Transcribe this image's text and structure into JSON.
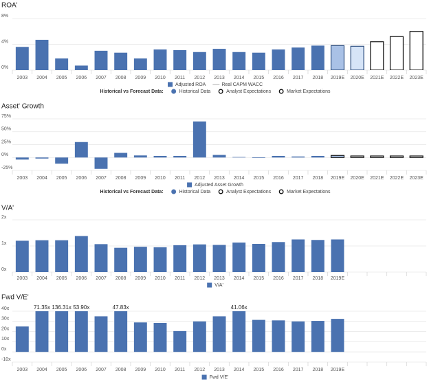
{
  "chart_data": [
    {
      "type": "bar",
      "title": "ROA'",
      "categories": [
        "2003",
        "2004",
        "2005",
        "2006",
        "2007",
        "2008",
        "2009",
        "2010",
        "2011",
        "2012",
        "2013",
        "2014",
        "2015",
        "2016",
        "2017",
        "2018",
        "2019E",
        "2020E",
        "2021E",
        "2022E",
        "2023E"
      ],
      "series": [
        {
          "name": "Adjusted ROA",
          "color": "#4a72b0",
          "values": [
            3.6,
            4.7,
            1.8,
            0.7,
            3.0,
            2.7,
            1.8,
            3.2,
            3.1,
            2.8,
            3.3,
            2.8,
            2.7,
            3.2,
            3.5,
            3.8,
            3.8,
            3.7,
            4.4,
            5.2,
            6.0
          ]
        }
      ],
      "bar_fills": [
        "#4a72b0",
        "#4a72b0",
        "#4a72b0",
        "#4a72b0",
        "#4a72b0",
        "#4a72b0",
        "#4a72b0",
        "#4a72b0",
        "#4a72b0",
        "#4a72b0",
        "#4a72b0",
        "#4a72b0",
        "#4a72b0",
        "#4a72b0",
        "#4a72b0",
        "#4a72b0",
        "#a9c1e6",
        "#d6e4f7",
        "#ffffff",
        "#ffffff",
        "#ffffff"
      ],
      "bar_strokes": [
        "none",
        "none",
        "none",
        "none",
        "none",
        "none",
        "none",
        "none",
        "none",
        "none",
        "none",
        "none",
        "none",
        "none",
        "none",
        "none",
        "#2f4f7f",
        "#2f4f7f",
        "#111111",
        "#111111",
        "#111111"
      ],
      "legend_lines": [
        {
          "name": "Real CAPM WACC",
          "color": "#c8c8c8"
        }
      ],
      "forecast_legend": {
        "title": "Historical vs Forecast Data:",
        "items": [
          {
            "name": "Historical Data",
            "fill": "#4a72b0",
            "stroke": "#4a72b0"
          },
          {
            "name": "Analyst Expectations",
            "fill": "#ffffff",
            "stroke": "#111111"
          },
          {
            "name": "Market Expectations",
            "fill": "#ffffff",
            "stroke": "#111111"
          }
        ]
      },
      "ylim": [
        0,
        8
      ],
      "yticks": [
        {
          "value": 0,
          "label": "0%"
        },
        {
          "value": 4,
          "label": "4%"
        },
        {
          "value": 8,
          "label": "8%"
        }
      ],
      "grid": true
    },
    {
      "type": "bar",
      "title": "Asset' Growth",
      "categories": [
        "2003",
        "2004",
        "2005",
        "2006",
        "2007",
        "2008",
        "2009",
        "2010",
        "2011",
        "2012",
        "2013",
        "2014",
        "2015",
        "2016",
        "2017",
        "2018",
        "2019E",
        "2020E",
        "2021E",
        "2022E",
        "2023E"
      ],
      "series": [
        {
          "name": "Adjusted Asset Growth",
          "color": "#4a72b0",
          "values": [
            -4,
            -2,
            -12,
            30,
            -22,
            9,
            4,
            3,
            3,
            70,
            5,
            1,
            -1,
            3,
            2,
            3,
            4,
            3,
            3,
            3,
            3
          ]
        }
      ],
      "bar_fills": [
        "#4a72b0",
        "#4a72b0",
        "#4a72b0",
        "#4a72b0",
        "#4a72b0",
        "#4a72b0",
        "#4a72b0",
        "#4a72b0",
        "#4a72b0",
        "#4a72b0",
        "#4a72b0",
        "#4a72b0",
        "#4a72b0",
        "#4a72b0",
        "#4a72b0",
        "#4a72b0",
        "#a9c1e6",
        "#ffffff",
        "#ffffff",
        "#ffffff",
        "#ffffff"
      ],
      "bar_strokes": [
        "none",
        "none",
        "none",
        "none",
        "none",
        "none",
        "none",
        "none",
        "none",
        "none",
        "none",
        "none",
        "none",
        "none",
        "none",
        "none",
        "#111111",
        "#111111",
        "#111111",
        "#111111",
        "#111111"
      ],
      "forecast_legend": {
        "title": "Historical vs Forecast Data:",
        "items": [
          {
            "name": "Historical Data",
            "fill": "#4a72b0",
            "stroke": "#4a72b0"
          },
          {
            "name": "Analyst Expectations",
            "fill": "#ffffff",
            "stroke": "#111111"
          },
          {
            "name": "Market Expectations",
            "fill": "#ffffff",
            "stroke": "#111111"
          }
        ]
      },
      "ylim": [
        -25,
        75
      ],
      "yticks": [
        {
          "value": -25,
          "label": "-25%"
        },
        {
          "value": 0,
          "label": "0%"
        },
        {
          "value": 25,
          "label": "25%"
        },
        {
          "value": 50,
          "label": "50%"
        },
        {
          "value": 75,
          "label": "75%"
        }
      ],
      "grid": true
    },
    {
      "type": "bar",
      "title": "V/A'",
      "categories": [
        "2003",
        "2004",
        "2005",
        "2006",
        "2007",
        "2008",
        "2009",
        "2010",
        "2011",
        "2012",
        "2013",
        "2014",
        "2015",
        "2016",
        "2017",
        "2018",
        "2019E",
        null,
        null,
        null,
        null
      ],
      "series": [
        {
          "name": "V/A'",
          "color": "#4a72b0",
          "values": [
            1.2,
            1.22,
            1.22,
            1.38,
            1.07,
            0.93,
            0.97,
            0.95,
            1.03,
            1.06,
            1.04,
            1.13,
            1.08,
            1.15,
            1.25,
            1.23,
            1.25,
            null,
            null,
            null,
            null
          ]
        }
      ],
      "ylim": [
        0,
        2
      ],
      "yticks": [
        {
          "value": 0,
          "label": "0x"
        },
        {
          "value": 1,
          "label": "1x"
        },
        {
          "value": 2,
          "label": "2x"
        }
      ],
      "grid": true
    },
    {
      "type": "bar",
      "title": "Fwd V/E'",
      "categories": [
        "2003",
        "2004",
        "2005",
        "2006",
        "2007",
        "2008",
        "2009",
        "2010",
        "2011",
        "2012",
        "2013",
        "2014",
        "2015",
        "2016",
        "2017",
        "2018",
        "2019E",
        null,
        null,
        null,
        null
      ],
      "series": [
        {
          "name": "Fwd V/E'",
          "color": "#4a72b0",
          "values": [
            25,
            71.35,
            136.31,
            53.9,
            35,
            47.83,
            29,
            28.5,
            20.5,
            30,
            35,
            41.06,
            31.5,
            31,
            30,
            30.5,
            32.5,
            null,
            null,
            null,
            null
          ],
          "value_labels": [
            null,
            "71.35x",
            "136.31x",
            "53.90x",
            null,
            "47.83x",
            null,
            null,
            null,
            null,
            null,
            "41.06x",
            null,
            null,
            null,
            null,
            null,
            null,
            null,
            null,
            null
          ]
        }
      ],
      "ylim": [
        -10,
        40
      ],
      "yticks": [
        {
          "value": -10,
          "label": "-10x"
        },
        {
          "value": 0,
          "label": "0x"
        },
        {
          "value": 10,
          "label": "10x"
        },
        {
          "value": 20,
          "label": "20x"
        },
        {
          "value": 30,
          "label": "30x"
        },
        {
          "value": 40,
          "label": "40x"
        }
      ],
      "grid": true
    }
  ]
}
